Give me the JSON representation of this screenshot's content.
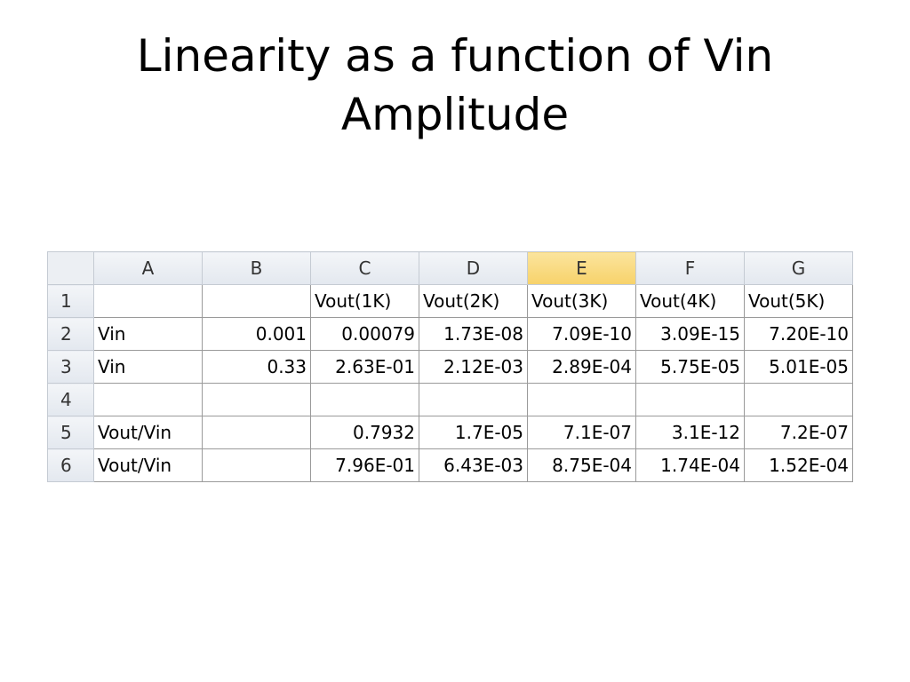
{
  "title": "Linearity as a function of Vin Amplitude",
  "table": {
    "columns": [
      "A",
      "B",
      "C",
      "D",
      "E",
      "F",
      "G"
    ],
    "selected_column": "E",
    "row_headers": [
      "1",
      "2",
      "3",
      "4",
      "5",
      "6"
    ],
    "rows": [
      [
        null,
        null,
        "Vout(1K)",
        "Vout(2K)",
        "Vout(3K)",
        "Vout(4K)",
        "Vout(5K)"
      ],
      [
        "Vin",
        "0.001",
        "0.00079",
        "1.73E-08",
        "7.09E-10",
        "3.09E-15",
        "7.20E-10"
      ],
      [
        "Vin",
        "0.33",
        "2.63E-01",
        "2.12E-03",
        "2.89E-04",
        "5.75E-05",
        "5.01E-05"
      ],
      [
        null,
        null,
        null,
        null,
        null,
        null,
        null
      ],
      [
        "Vout/Vin",
        null,
        "0.7932",
        "1.7E-05",
        "7.1E-07",
        "3.1E-12",
        "7.2E-07"
      ],
      [
        "Vout/Vin",
        null,
        "7.96E-01",
        "6.43E-03",
        "8.75E-04",
        "1.74E-04",
        "1.52E-04"
      ]
    ]
  }
}
